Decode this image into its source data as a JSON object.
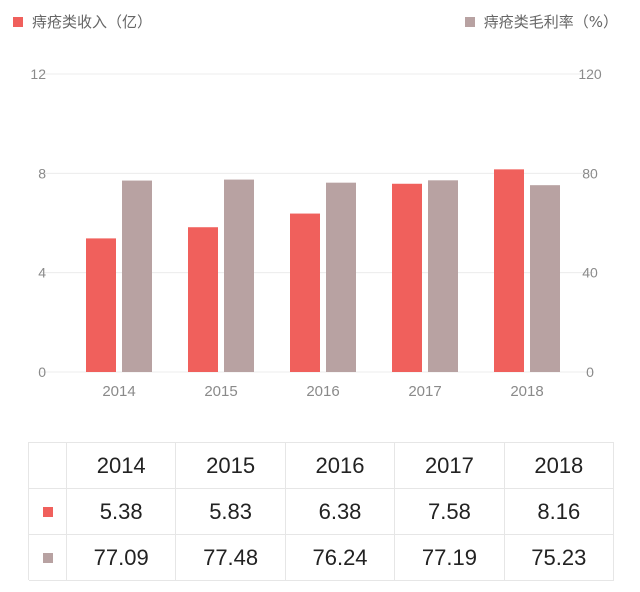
{
  "legend": {
    "series1": "痔疮类收入（亿）",
    "series2": "痔疮类毛利率（%）"
  },
  "colors": {
    "series1": "#f0605c",
    "series2": "#b8a2a2",
    "grid": "#ececec",
    "axis_text": "#8a8a8a"
  },
  "chart_data": {
    "type": "bar",
    "categories": [
      "2014",
      "2015",
      "2016",
      "2017",
      "2018"
    ],
    "series": [
      {
        "name": "痔疮类收入（亿）",
        "axis": "left",
        "values": [
          5.38,
          5.83,
          6.38,
          7.58,
          8.16
        ]
      },
      {
        "name": "痔疮类毛利率（%）",
        "axis": "right",
        "values": [
          77.09,
          77.48,
          76.24,
          77.19,
          75.23
        ]
      }
    ],
    "left_axis": {
      "ticks": [
        "0",
        "4",
        "8",
        "12"
      ],
      "range": [
        0,
        12
      ]
    },
    "right_axis": {
      "ticks": [
        "0",
        "40",
        "80",
        "120"
      ],
      "range": [
        0,
        120
      ]
    },
    "legend_position": "top"
  },
  "table": {
    "header": [
      "2014",
      "2015",
      "2016",
      "2017",
      "2018"
    ],
    "rows": [
      {
        "series": "series1",
        "values": [
          "5.38",
          "5.83",
          "6.38",
          "7.58",
          "8.16"
        ]
      },
      {
        "series": "series2",
        "values": [
          "77.09",
          "77.48",
          "76.24",
          "77.19",
          "75.23"
        ]
      }
    ]
  }
}
